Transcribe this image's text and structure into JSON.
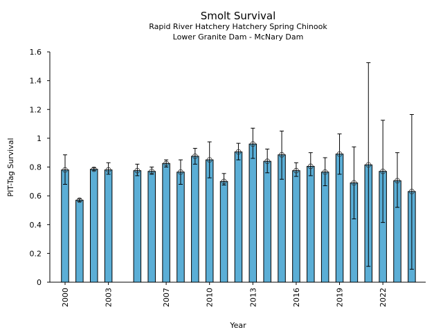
{
  "chart_data": {
    "type": "bar",
    "title": "Smolt Survival",
    "subtitle_lines": [
      "Rapid River Hatchery Hatchery Spring Chinook",
      "Lower Granite Dam - McNary Dam"
    ],
    "xlabel": "Year",
    "ylabel": "PIT-Tag Survival",
    "ylim": [
      0,
      1.6
    ],
    "yticks": [
      0,
      0.2,
      0.4,
      0.6,
      0.8,
      1,
      1.2,
      1.4,
      1.6
    ],
    "ytick_labels": [
      "0",
      "0.2",
      "0.4",
      "0.6",
      "0.8",
      "1",
      "1.2",
      "1.4",
      "1.6"
    ],
    "xlim": [
      1999.15,
      2025.0
    ],
    "xticks": [
      2000,
      2003,
      2007,
      2010,
      2013,
      2016,
      2019,
      2022
    ],
    "xtick_labels": [
      "2000",
      "2003",
      "2007",
      "2010",
      "2013",
      "2016",
      "2019",
      "2022"
    ],
    "grid": false,
    "bar_color": "#5BAED6",
    "edge_color": "#000000",
    "x": [
      2000,
      2001,
      2002,
      2003,
      2005,
      2006,
      2007,
      2008,
      2009,
      2010,
      2011,
      2012,
      2013,
      2014,
      2015,
      2016,
      2017,
      2018,
      2019,
      2020,
      2021,
      2022,
      2023,
      2024
    ],
    "values": [
      0.78,
      0.57,
      0.785,
      0.78,
      0.775,
      0.77,
      0.825,
      0.765,
      0.875,
      0.85,
      0.7,
      0.905,
      0.96,
      0.84,
      0.885,
      0.775,
      0.805,
      0.765,
      0.89,
      0.69,
      0.815,
      0.77,
      0.705,
      0.63
    ],
    "ci_lower": [
      0.68,
      0.56,
      0.775,
      0.75,
      0.74,
      0.75,
      0.8,
      0.68,
      0.82,
      0.725,
      0.675,
      0.85,
      0.86,
      0.76,
      0.715,
      0.735,
      0.74,
      0.67,
      0.75,
      0.44,
      0.11,
      0.415,
      0.52,
      0.09
    ],
    "ci_upper": [
      0.885,
      0.58,
      0.795,
      0.83,
      0.82,
      0.8,
      0.85,
      0.85,
      0.93,
      0.975,
      0.755,
      0.965,
      1.07,
      0.925,
      1.05,
      0.83,
      0.9,
      0.865,
      1.03,
      0.94,
      1.525,
      1.125,
      0.9,
      1.165
    ]
  }
}
